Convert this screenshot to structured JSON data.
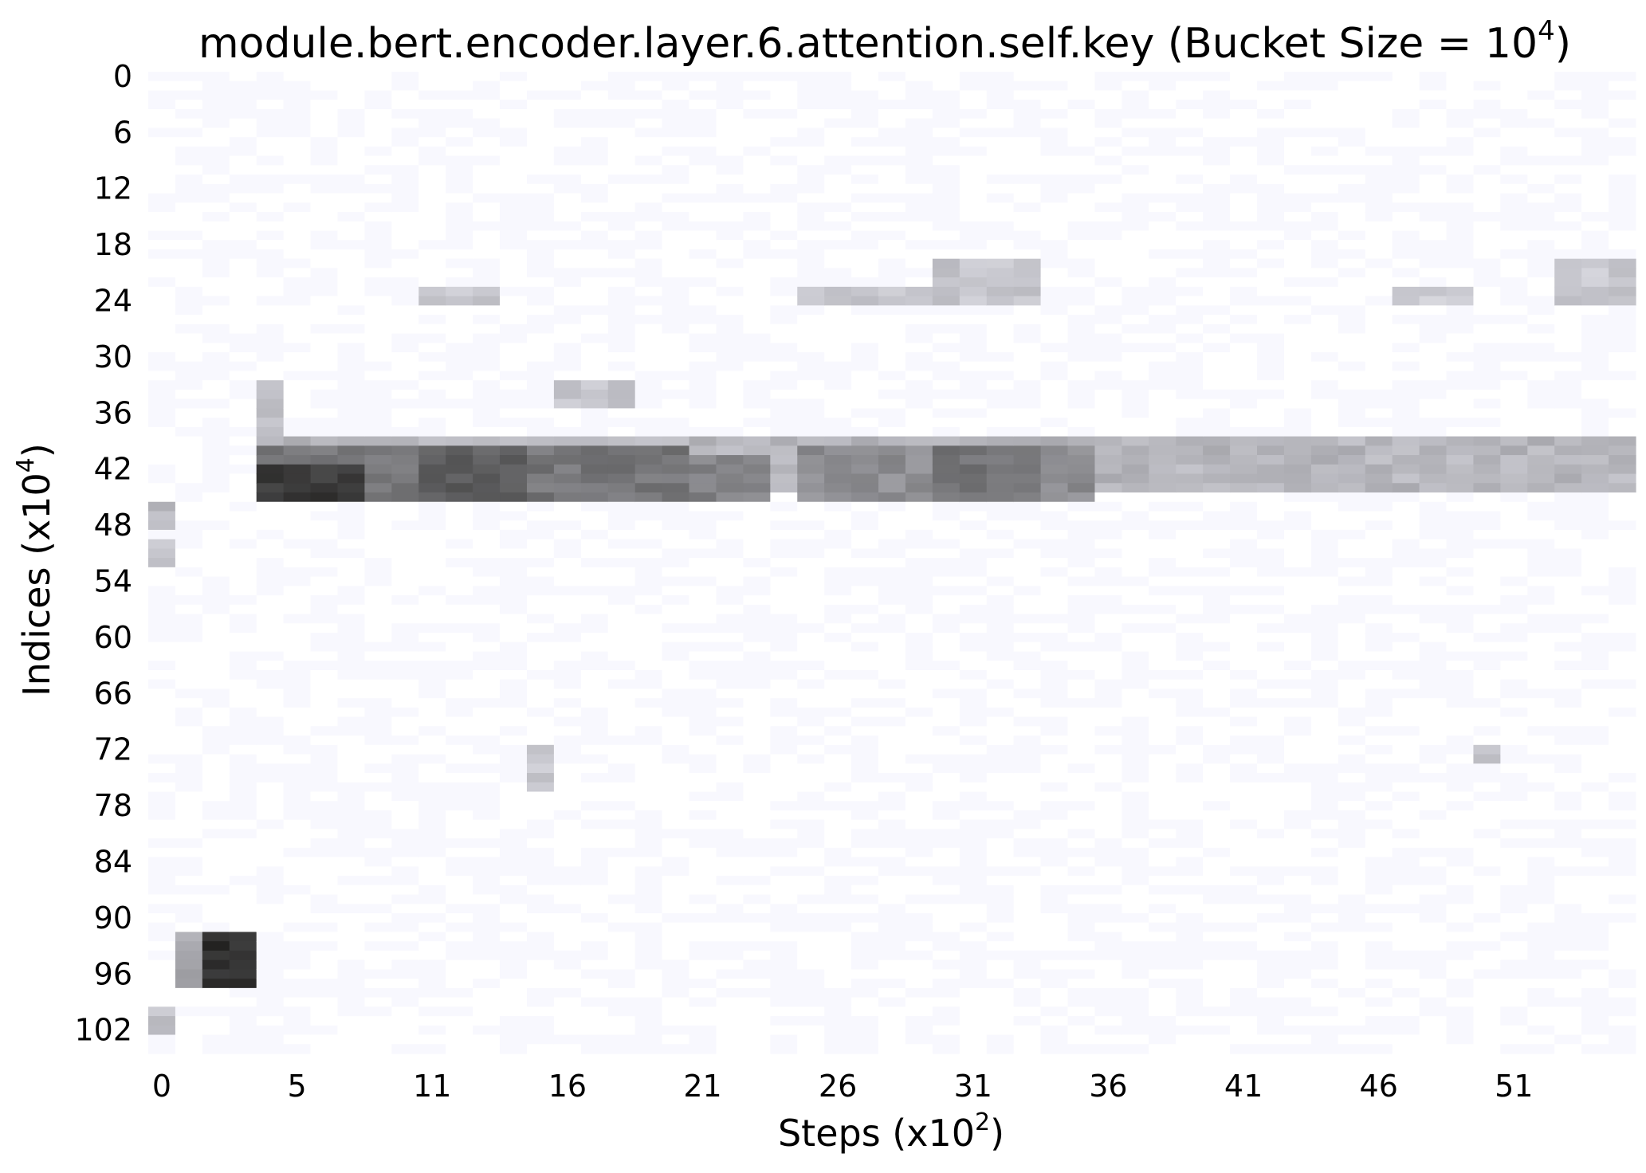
{
  "chart_data": {
    "type": "heatmap",
    "title": "module.bert.encoder.layer.6.attention.self.key (Bucket Size = 10",
    "title_sup": "4",
    "title_end": ")",
    "xlabel": "Steps (x10",
    "xlabel_sup": "2",
    "xlabel_end": ")",
    "ylabel": "Indices (x10",
    "ylabel_sup": "4",
    "ylabel_end": ")",
    "x_ticks": [
      "0",
      "5",
      "11",
      "16",
      "21",
      "26",
      "31",
      "36",
      "41",
      "46",
      "51"
    ],
    "y_ticks": [
      "0",
      "6",
      "12",
      "18",
      "24",
      "30",
      "36",
      "42",
      "48",
      "54",
      "60",
      "66",
      "72",
      "78",
      "84",
      "90",
      "96",
      "102"
    ],
    "n_steps": 55,
    "n_buckets": 105,
    "value_range": [
      0,
      1
    ],
    "colormap": [
      "#f8f8fe",
      "#c9c9d0",
      "#9a9a9f",
      "#6a6a6c",
      "#3a3a3a",
      "#0d0a08"
    ],
    "grid": false,
    "bands": [
      {
        "steps": [
          4,
          54
        ],
        "buckets": [
          39,
          44
        ],
        "level": 0.28
      },
      {
        "steps": [
          4,
          19
        ],
        "buckets": [
          40,
          45
        ],
        "level": 0.55
      },
      {
        "steps": [
          4,
          7
        ],
        "buckets": [
          42,
          45
        ],
        "level": 0.8
      },
      {
        "steps": [
          8,
          10
        ],
        "buckets": [
          41,
          44
        ],
        "level": 0.2
      },
      {
        "steps": [
          10,
          13
        ],
        "buckets": [
          40,
          45
        ],
        "level": 0.65
      },
      {
        "steps": [
          19,
          22
        ],
        "buckets": [
          41,
          45
        ],
        "level": 0.5
      },
      {
        "steps": [
          24,
          28
        ],
        "buckets": [
          40,
          45
        ],
        "level": 0.45
      },
      {
        "steps": [
          29,
          32
        ],
        "buckets": [
          40,
          45
        ],
        "level": 0.55
      },
      {
        "steps": [
          33,
          34
        ],
        "buckets": [
          40,
          45
        ],
        "level": 0.45
      },
      {
        "steps": [
          35,
          43
        ],
        "buckets": [
          41,
          44
        ],
        "level": 0.22
      },
      {
        "steps": [
          4,
          4
        ],
        "buckets": [
          33,
          38
        ],
        "level": 0.25
      },
      {
        "steps": [
          15,
          17
        ],
        "buckets": [
          33,
          35
        ],
        "level": 0.22
      },
      {
        "steps": [
          2,
          3
        ],
        "buckets": [
          92,
          97
        ],
        "level": 0.85
      },
      {
        "steps": [
          1,
          1
        ],
        "buckets": [
          92,
          97
        ],
        "level": 0.35
      },
      {
        "steps": [
          3,
          3
        ],
        "buckets": [
          92,
          97
        ],
        "level": 0.6
      },
      {
        "steps": [
          0,
          0
        ],
        "buckets": [
          46,
          48
        ],
        "level": 0.25
      },
      {
        "steps": [
          0,
          0
        ],
        "buckets": [
          50,
          52
        ],
        "level": 0.2
      },
      {
        "steps": [
          0,
          0
        ],
        "buckets": [
          100,
          102
        ],
        "level": 0.22
      },
      {
        "steps": [
          10,
          12
        ],
        "buckets": [
          23,
          24
        ],
        "level": 0.2
      },
      {
        "steps": [
          24,
          28
        ],
        "buckets": [
          23,
          24
        ],
        "level": 0.2
      },
      {
        "steps": [
          29,
          32
        ],
        "buckets": [
          20,
          24
        ],
        "level": 0.22
      },
      {
        "steps": [
          46,
          48
        ],
        "buckets": [
          23,
          24
        ],
        "level": 0.2
      },
      {
        "steps": [
          52,
          54
        ],
        "buckets": [
          20,
          24
        ],
        "level": 0.2
      },
      {
        "steps": [
          14,
          14
        ],
        "buckets": [
          72,
          76
        ],
        "level": 0.2
      },
      {
        "steps": [
          49,
          49
        ],
        "buckets": [
          72,
          73
        ],
        "level": 0.2
      }
    ]
  }
}
